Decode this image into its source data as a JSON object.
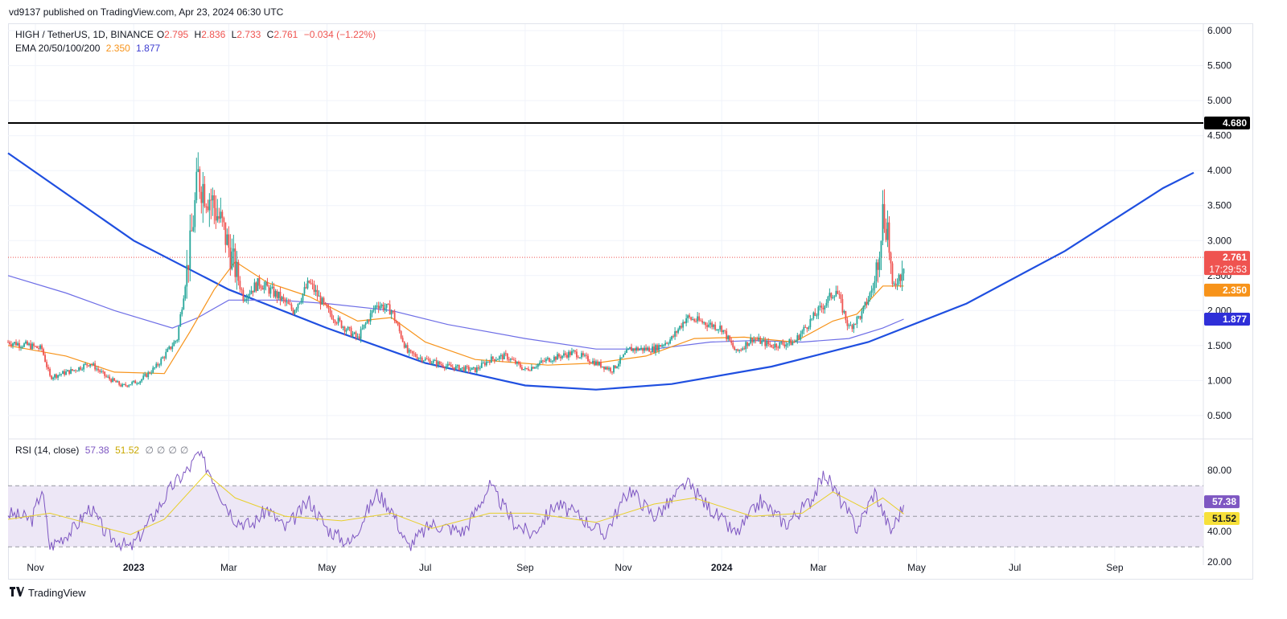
{
  "header": {
    "publish_line": "vd9137 published on TradingView.com, Apr 23, 2024 06:30 UTC"
  },
  "footer": {
    "brand": "TradingView",
    "logo_icon": "tradingview-logo-icon"
  },
  "legend": {
    "symbol": "HIGH / TetherUS, 1D, BINANCE",
    "o_label": "O",
    "o_value": "2.795",
    "h_label": "H",
    "h_value": "2.836",
    "l_label": "L",
    "l_value": "2.733",
    "c_label": "C",
    "c_value": "2.761",
    "change": "−0.034 (−1.22%)",
    "ema_label": "EMA 20/50/100/200",
    "ema1_value": "2.350",
    "ema2_value": "1.877"
  },
  "rsi_legend": {
    "label": "RSI (14, close)",
    "rsi_value": "57.38",
    "ma_value": "51.52",
    "na": [
      "∅",
      "∅",
      "∅",
      "∅"
    ]
  },
  "colors": {
    "up": "#26a69a",
    "down": "#ef5350",
    "ema20": "#f7931a",
    "ema200": "#6e6ee6",
    "curve": "#1f4fe0",
    "resistance": "#000000",
    "rsi_line": "#7e57c2",
    "rsi_ma": "#f5e14b",
    "rsi_band": "#ede7f6"
  },
  "chart_data": [
    {
      "type": "candlestick",
      "title": "HIGH / TetherUS, 1D, BINANCE",
      "x_range": [
        "2022-10-15",
        "2024-10-25"
      ],
      "ylim": [
        0.2,
        6.3
      ],
      "y_ticks": [
        "6.000",
        "5.500",
        "5.000",
        "4.500",
        "4.000",
        "3.500",
        "3.000",
        "2.500",
        "2.000",
        "1.500",
        "1.000",
        "0.500"
      ],
      "x_ticks": [
        {
          "date": "2022-11-01",
          "label": "Nov"
        },
        {
          "date": "2023-01-01",
          "label": "2023"
        },
        {
          "date": "2023-03-01",
          "label": "Mar"
        },
        {
          "date": "2023-05-01",
          "label": "May"
        },
        {
          "date": "2023-07-01",
          "label": "Jul"
        },
        {
          "date": "2023-09-01",
          "label": "Sep"
        },
        {
          "date": "2023-11-01",
          "label": "Nov"
        },
        {
          "date": "2024-01-01",
          "label": "2024"
        },
        {
          "date": "2024-03-01",
          "label": "Mar"
        },
        {
          "date": "2024-05-01",
          "label": "May"
        },
        {
          "date": "2024-07-01",
          "label": "Jul"
        },
        {
          "date": "2024-09-01",
          "label": "Sep"
        }
      ],
      "close_path": [
        [
          "2022-10-15",
          1.55
        ],
        [
          "2022-10-28",
          1.5
        ],
        [
          "2022-11-05",
          1.45
        ],
        [
          "2022-11-10",
          1.05
        ],
        [
          "2022-11-25",
          1.15
        ],
        [
          "2022-12-05",
          1.25
        ],
        [
          "2022-12-15",
          1.05
        ],
        [
          "2022-12-25",
          0.92
        ],
        [
          "2023-01-05",
          1.0
        ],
        [
          "2023-01-15",
          1.2
        ],
        [
          "2023-01-28",
          1.6
        ],
        [
          "2023-02-05",
          2.9
        ],
        [
          "2023-02-10",
          3.9
        ],
        [
          "2023-02-18",
          3.6
        ],
        [
          "2023-02-25",
          3.2
        ],
        [
          "2023-03-05",
          2.6
        ],
        [
          "2023-03-10",
          2.2
        ],
        [
          "2023-03-20",
          2.4
        ],
        [
          "2023-04-01",
          2.2
        ],
        [
          "2023-04-10",
          2.0
        ],
        [
          "2023-04-20",
          2.4
        ],
        [
          "2023-05-01",
          2.0
        ],
        [
          "2023-05-10",
          1.8
        ],
        [
          "2023-05-20",
          1.6
        ],
        [
          "2023-06-01",
          2.1
        ],
        [
          "2023-06-10",
          2.0
        ],
        [
          "2023-06-20",
          1.4
        ],
        [
          "2023-07-01",
          1.3
        ],
        [
          "2023-07-15",
          1.2
        ],
        [
          "2023-08-01",
          1.15
        ],
        [
          "2023-08-10",
          1.3
        ],
        [
          "2023-08-20",
          1.35
        ],
        [
          "2023-09-01",
          1.15
        ],
        [
          "2023-09-15",
          1.3
        ],
        [
          "2023-10-01",
          1.4
        ],
        [
          "2023-10-15",
          1.25
        ],
        [
          "2023-10-25",
          1.15
        ],
        [
          "2023-11-05",
          1.45
        ],
        [
          "2023-11-20",
          1.45
        ],
        [
          "2023-12-01",
          1.6
        ],
        [
          "2023-12-10",
          1.9
        ],
        [
          "2023-12-25",
          1.8
        ],
        [
          "2024-01-01",
          1.75
        ],
        [
          "2024-01-10",
          1.4
        ],
        [
          "2024-01-20",
          1.6
        ],
        [
          "2024-02-01",
          1.5
        ],
        [
          "2024-02-15",
          1.55
        ],
        [
          "2024-02-25",
          1.85
        ],
        [
          "2024-03-05",
          2.1
        ],
        [
          "2024-03-12",
          2.3
        ],
        [
          "2024-03-20",
          1.75
        ],
        [
          "2024-03-28",
          1.95
        ],
        [
          "2024-04-05",
          2.4
        ],
        [
          "2024-04-10",
          3.4
        ],
        [
          "2024-04-13",
          3.2
        ],
        [
          "2024-04-16",
          2.3
        ],
        [
          "2024-04-20",
          2.5
        ],
        [
          "2024-04-23",
          2.761
        ]
      ],
      "annotations": {
        "resistance_level": 4.68,
        "resistance_label": "4.680",
        "last_price": 2.761,
        "last_price_label": "2.761",
        "countdown": "17:29:53",
        "ema20_value": 2.35,
        "ema20_label": "2.350",
        "ema200_value": 1.877,
        "ema200_label": "1.877"
      },
      "ema20_path": [
        [
          "2022-10-15",
          1.5
        ],
        [
          "2022-11-20",
          1.35
        ],
        [
          "2022-12-20",
          1.12
        ],
        [
          "2023-01-20",
          1.1
        ],
        [
          "2023-02-05",
          1.7
        ],
        [
          "2023-02-20",
          2.3
        ],
        [
          "2023-03-05",
          2.7
        ],
        [
          "2023-03-25",
          2.4
        ],
        [
          "2023-04-20",
          2.2
        ],
        [
          "2023-05-20",
          1.85
        ],
        [
          "2023-06-10",
          1.9
        ],
        [
          "2023-07-01",
          1.55
        ],
        [
          "2023-08-01",
          1.3
        ],
        [
          "2023-09-15",
          1.22
        ],
        [
          "2023-10-15",
          1.25
        ],
        [
          "2023-11-15",
          1.35
        ],
        [
          "2023-12-15",
          1.6
        ],
        [
          "2024-01-15",
          1.62
        ],
        [
          "2024-02-15",
          1.55
        ],
        [
          "2024-03-10",
          1.85
        ],
        [
          "2024-03-25",
          1.95
        ],
        [
          "2024-04-10",
          2.35
        ],
        [
          "2024-04-23",
          2.35
        ]
      ],
      "ema200_path": [
        [
          "2022-10-15",
          2.5
        ],
        [
          "2022-11-20",
          2.25
        ],
        [
          "2022-12-20",
          2.0
        ],
        [
          "2023-01-25",
          1.75
        ],
        [
          "2023-02-10",
          1.9
        ],
        [
          "2023-03-01",
          2.15
        ],
        [
          "2023-04-01",
          2.15
        ],
        [
          "2023-05-01",
          2.1
        ],
        [
          "2023-06-10",
          2.0
        ],
        [
          "2023-07-15",
          1.8
        ],
        [
          "2023-09-01",
          1.6
        ],
        [
          "2023-10-15",
          1.45
        ],
        [
          "2023-11-20",
          1.45
        ],
        [
          "2023-12-25",
          1.55
        ],
        [
          "2024-01-20",
          1.57
        ],
        [
          "2024-02-20",
          1.55
        ],
        [
          "2024-03-20",
          1.6
        ],
        [
          "2024-04-10",
          1.75
        ],
        [
          "2024-04-23",
          1.877
        ]
      ],
      "curve_path": [
        [
          "2022-10-15",
          4.25
        ],
        [
          "2023-01-01",
          3.0
        ],
        [
          "2023-03-01",
          2.3
        ],
        [
          "2023-05-01",
          1.75
        ],
        [
          "2023-07-01",
          1.25
        ],
        [
          "2023-09-01",
          0.93
        ],
        [
          "2023-10-15",
          0.87
        ],
        [
          "2023-12-01",
          0.95
        ],
        [
          "2024-02-01",
          1.2
        ],
        [
          "2024-04-01",
          1.55
        ],
        [
          "2024-06-01",
          2.1
        ],
        [
          "2024-08-01",
          2.85
        ],
        [
          "2024-10-01",
          3.75
        ],
        [
          "2024-10-20",
          3.97
        ]
      ]
    },
    {
      "type": "line",
      "title": "RSI (14, close)",
      "ylim": [
        18,
        98
      ],
      "y_ticks": [
        "80.00",
        "40.00",
        "20.00"
      ],
      "band": [
        30,
        70
      ],
      "midline": 50,
      "series": [
        {
          "name": "RSI",
          "values_path": [
            [
              "2022-10-15",
              52
            ],
            [
              "2022-10-30",
              48
            ],
            [
              "2022-11-05",
              68
            ],
            [
              "2022-11-10",
              30
            ],
            [
              "2022-11-25",
              42
            ],
            [
              "2022-12-05",
              56
            ],
            [
              "2022-12-15",
              38
            ],
            [
              "2022-12-30",
              29
            ],
            [
              "2023-01-10",
              45
            ],
            [
              "2023-01-25",
              70
            ],
            [
              "2023-02-05",
              82
            ],
            [
              "2023-02-10",
              91
            ],
            [
              "2023-02-18",
              78
            ],
            [
              "2023-02-25",
              62
            ],
            [
              "2023-03-05",
              48
            ],
            [
              "2023-03-15",
              44
            ],
            [
              "2023-03-25",
              55
            ],
            [
              "2023-04-05",
              42
            ],
            [
              "2023-04-20",
              60
            ],
            [
              "2023-05-01",
              42
            ],
            [
              "2023-05-15",
              32
            ],
            [
              "2023-06-01",
              65
            ],
            [
              "2023-06-10",
              55
            ],
            [
              "2023-06-20",
              30
            ],
            [
              "2023-07-05",
              45
            ],
            [
              "2023-07-25",
              40
            ],
            [
              "2023-08-10",
              70
            ],
            [
              "2023-08-25",
              46
            ],
            [
              "2023-09-05",
              38
            ],
            [
              "2023-09-20",
              58
            ],
            [
              "2023-10-05",
              50
            ],
            [
              "2023-10-20",
              38
            ],
            [
              "2023-11-05",
              68
            ],
            [
              "2023-11-20",
              50
            ],
            [
              "2023-12-01",
              60
            ],
            [
              "2023-12-10",
              72
            ],
            [
              "2023-12-25",
              55
            ],
            [
              "2024-01-10",
              38
            ],
            [
              "2024-01-25",
              60
            ],
            [
              "2024-02-10",
              45
            ],
            [
              "2024-02-25",
              60
            ],
            [
              "2024-03-05",
              78
            ],
            [
              "2024-03-15",
              60
            ],
            [
              "2024-03-25",
              42
            ],
            [
              "2024-04-05",
              66
            ],
            [
              "2024-04-15",
              40
            ],
            [
              "2024-04-23",
              57.38
            ]
          ]
        },
        {
          "name": "MA",
          "values_path": [
            [
              "2022-10-15",
              48
            ],
            [
              "2022-11-10",
              52
            ],
            [
              "2022-12-05",
              45
            ],
            [
              "2022-12-30",
              38
            ],
            [
              "2023-01-20",
              48
            ],
            [
              "2023-02-15",
              78
            ],
            [
              "2023-03-05",
              62
            ],
            [
              "2023-04-05",
              50
            ],
            [
              "2023-05-10",
              47
            ],
            [
              "2023-06-10",
              52
            ],
            [
              "2023-07-05",
              42
            ],
            [
              "2023-08-10",
              52
            ],
            [
              "2023-09-05",
              52
            ],
            [
              "2023-10-15",
              46
            ],
            [
              "2023-11-20",
              58
            ],
            [
              "2023-12-15",
              62
            ],
            [
              "2024-01-20",
              50
            ],
            [
              "2024-02-20",
              52
            ],
            [
              "2024-03-10",
              66
            ],
            [
              "2024-03-30",
              55
            ],
            [
              "2024-04-10",
              62
            ],
            [
              "2024-04-23",
              51.52
            ]
          ]
        }
      ],
      "annotations": {
        "rsi_label": "57.38",
        "ma_label": "51.52"
      }
    }
  ]
}
